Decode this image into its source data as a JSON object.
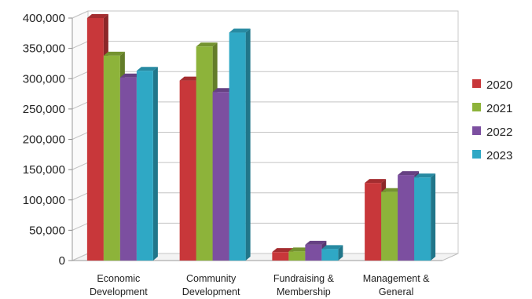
{
  "chart_data": {
    "type": "bar",
    "style": "3d-clustered-column",
    "categories": [
      [
        "Economic",
        "Development"
      ],
      [
        "Community",
        "Development"
      ],
      [
        "Fundraising &",
        "Membership"
      ],
      [
        "Management &",
        "General"
      ]
    ],
    "series": [
      {
        "name": "2020",
        "color": "#c8373a",
        "values": [
          400000,
          297000,
          14000,
          128000
        ]
      },
      {
        "name": "2021",
        "color": "#8db33a",
        "values": [
          338000,
          353000,
          15000,
          113000
        ]
      },
      {
        "name": "2022",
        "color": "#7c4fa0",
        "values": [
          302000,
          278000,
          26000,
          141000
        ]
      },
      {
        "name": "2023",
        "color": "#2fa8c5",
        "values": [
          313000,
          376000,
          19000,
          137000
        ]
      }
    ],
    "y_ticks": [
      "0",
      "50,000",
      "100,000",
      "150,000",
      "200,000",
      "250,000",
      "300,000",
      "350,000",
      "400,000"
    ],
    "ylim": [
      0,
      400000
    ],
    "grid": true,
    "legend": "right"
  }
}
